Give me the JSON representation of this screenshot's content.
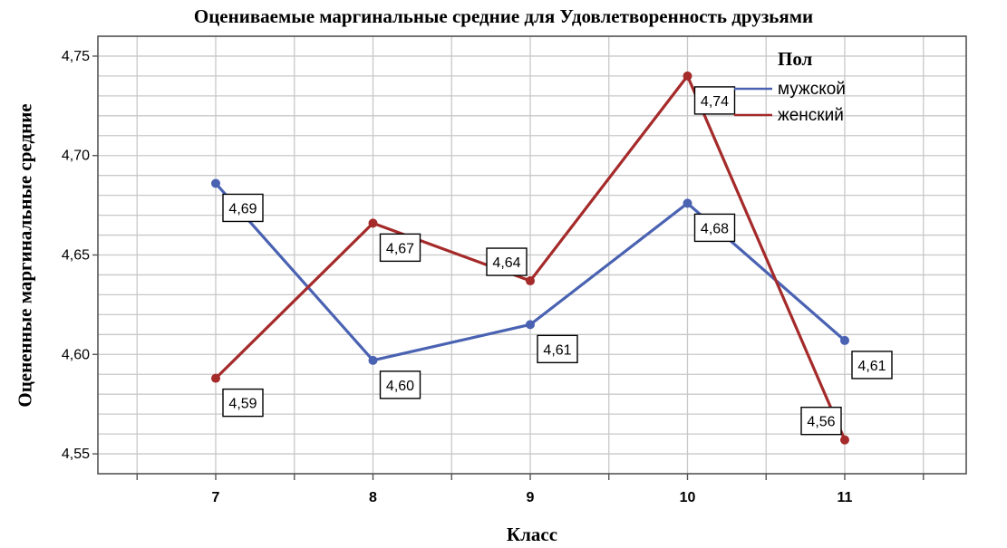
{
  "chart_data": {
    "type": "line",
    "title": "Оцениваемые маргинальные средние для Удовлетворенность друзьями",
    "xlabel": "Класс",
    "ylabel": "Оцененные маргинальные средние",
    "categories": [
      "7",
      "8",
      "9",
      "10",
      "11"
    ],
    "ylim": [
      4.54,
      4.76
    ],
    "yticks": [
      "4,55",
      "4,60",
      "4,65",
      "4,70",
      "4,75"
    ],
    "grid": true,
    "legend": {
      "title": "Пол",
      "position": "top-right"
    },
    "series": [
      {
        "name": "мужской",
        "color": "#4a62b2",
        "values": [
          4.686,
          4.597,
          4.615,
          4.676,
          4.607
        ],
        "labels": [
          "4,69",
          "4,60",
          "4,61",
          "4,68",
          "4,61"
        ]
      },
      {
        "name": "женский",
        "color": "#a52a2a",
        "values": [
          4.588,
          4.666,
          4.637,
          4.74,
          4.557
        ],
        "labels": [
          "4,59",
          "4,67",
          "4,64",
          "4,74",
          "4,56"
        ]
      }
    ]
  }
}
